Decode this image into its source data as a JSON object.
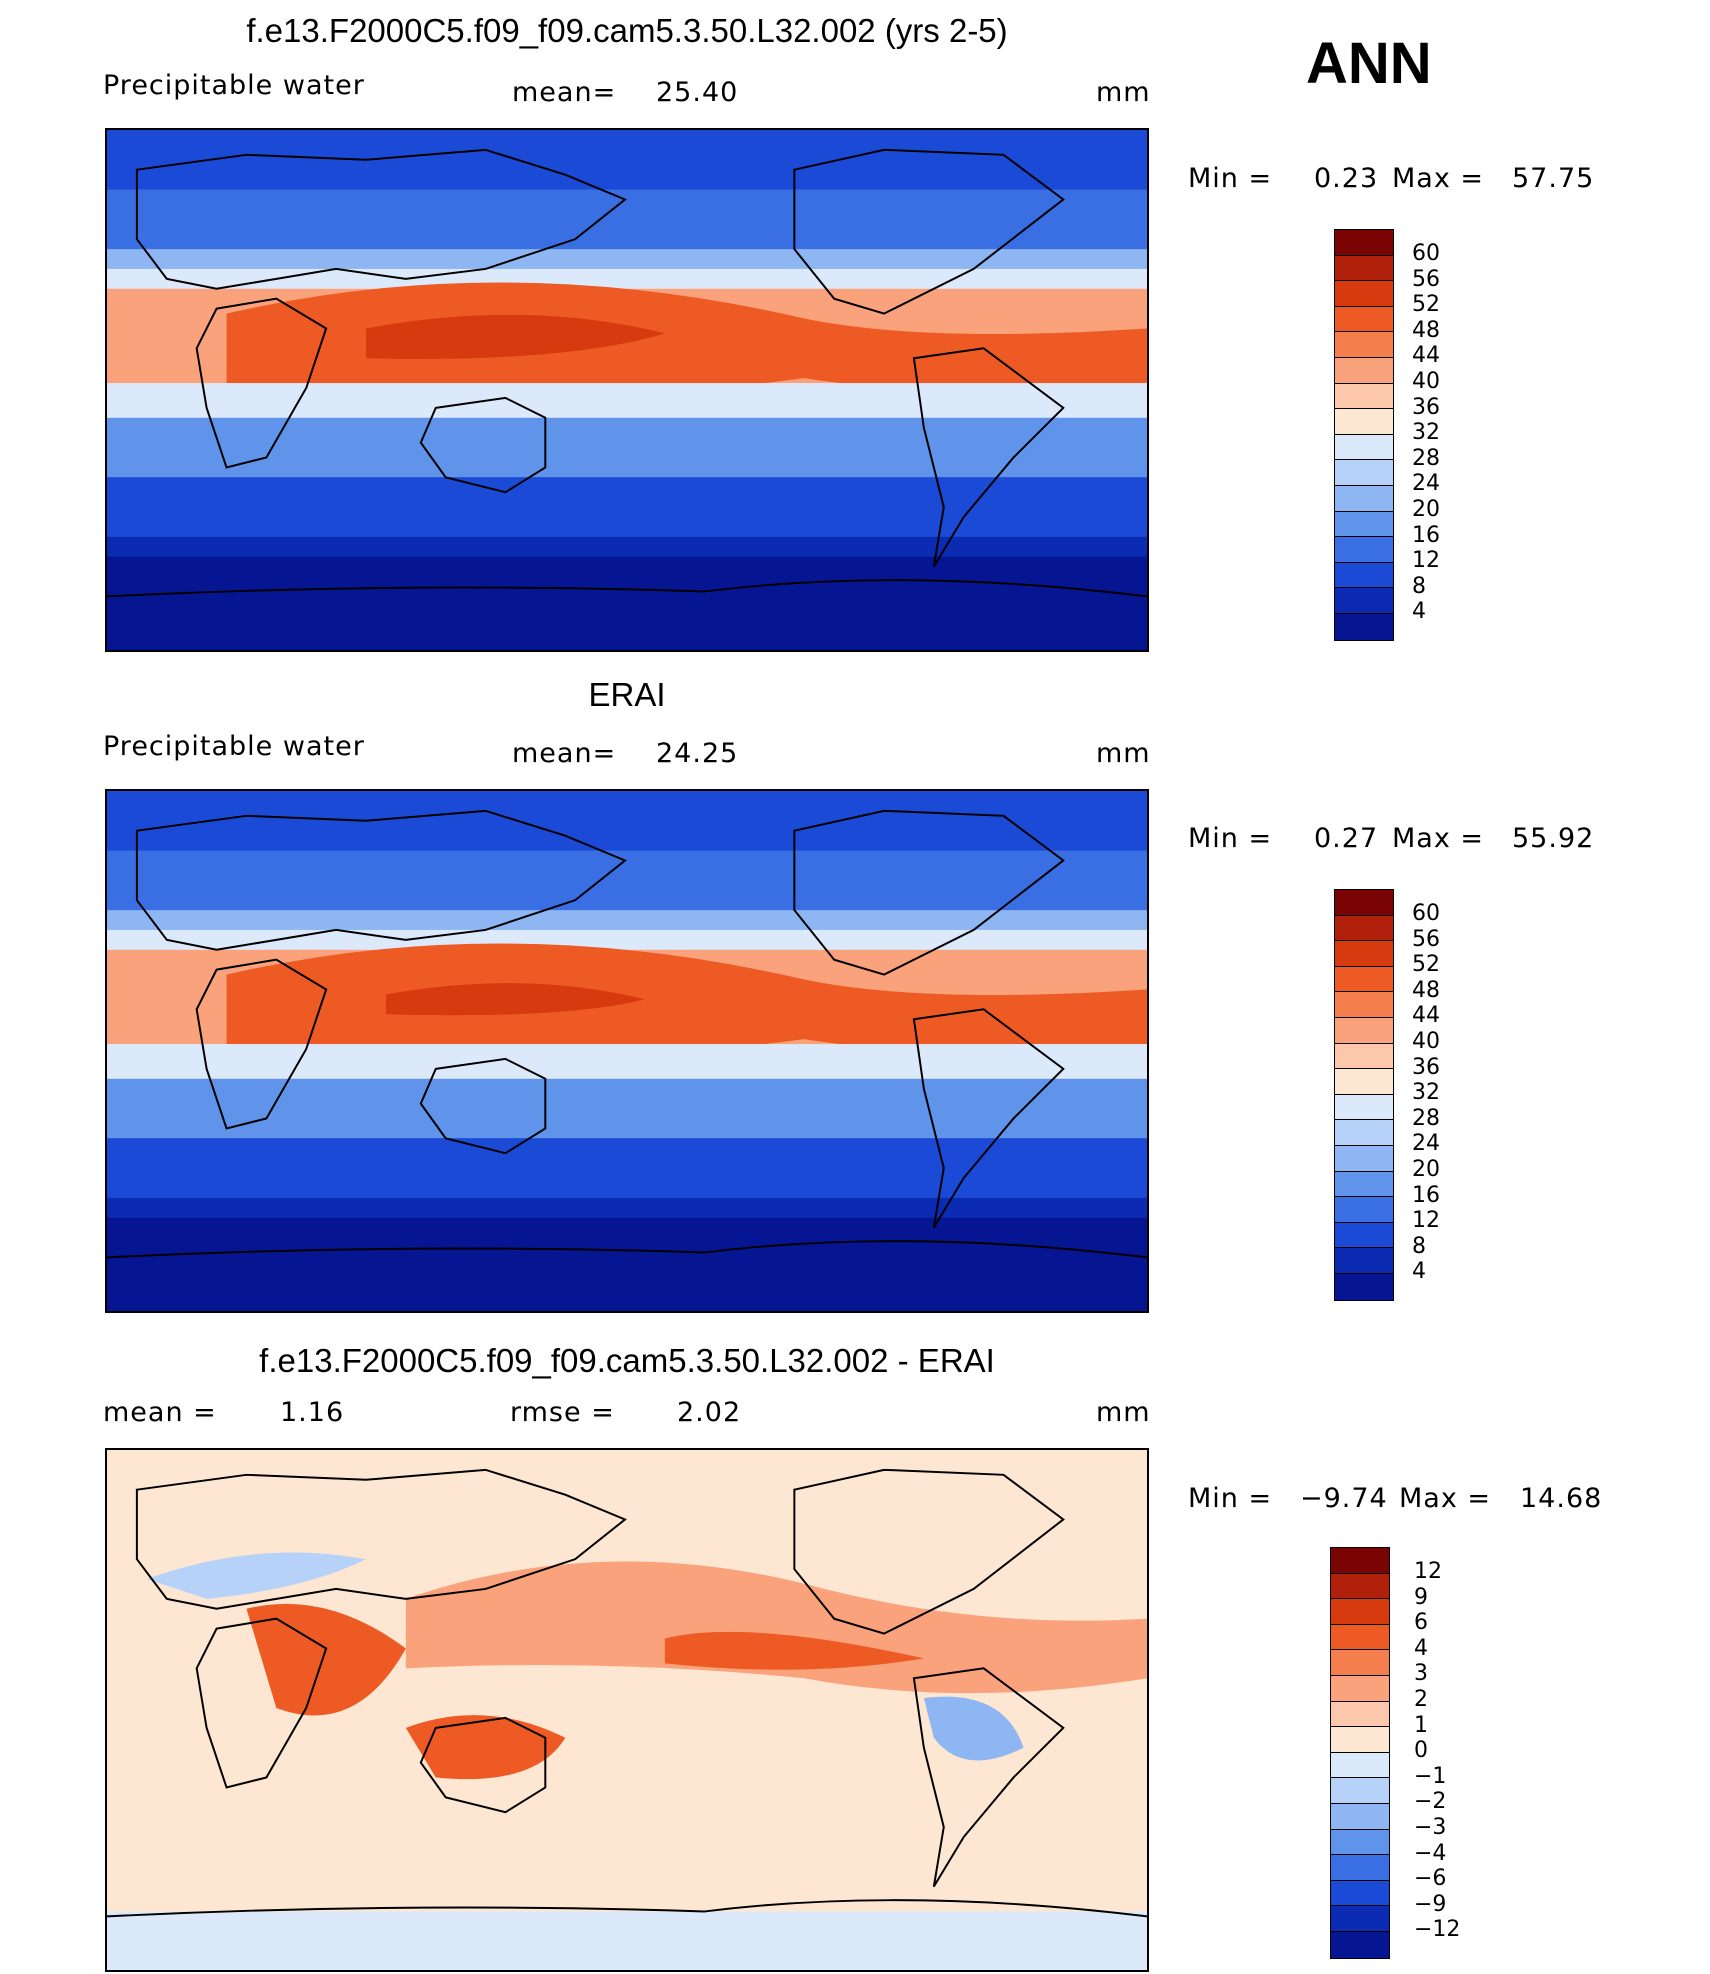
{
  "header": {
    "season": "ANN"
  },
  "panels": [
    {
      "id": "model",
      "title": "f.e13.F2000C5.f09_f09.cam5.3.50.L32.002 (yrs 2-5)",
      "variable": "Precipitable water",
      "stat_label": "mean=",
      "stat_value": "25.40",
      "units": "mm",
      "min_label": "Min =",
      "min_value": "0.23",
      "max_label": "Max =",
      "max_value": "57.75",
      "colorbar": {
        "labels": [
          "60",
          "56",
          "52",
          "48",
          "44",
          "40",
          "36",
          "32",
          "28",
          "24",
          "20",
          "16",
          "12",
          "8",
          "4"
        ],
        "colors": [
          "#7a0403",
          "#b0200b",
          "#d83a10",
          "#ee5a24",
          "#f57e4d",
          "#f9a27c",
          "#fcc7aa",
          "#fde6d2",
          "#dce9fb",
          "#b6d2f8",
          "#8db6f2",
          "#5f94ea",
          "#3a6fe3",
          "#1b4ad6",
          "#0b2bb3",
          "#061591"
        ]
      }
    },
    {
      "id": "obs",
      "title": "ERAI",
      "variable": "Precipitable water",
      "stat_label": "mean=",
      "stat_value": "24.25",
      "units": "mm",
      "min_label": "Min =",
      "min_value": "0.27",
      "max_label": "Max =",
      "max_value": "55.92",
      "colorbar": {
        "labels": [
          "60",
          "56",
          "52",
          "48",
          "44",
          "40",
          "36",
          "32",
          "28",
          "24",
          "20",
          "16",
          "12",
          "8",
          "4"
        ],
        "colors": [
          "#7a0403",
          "#b0200b",
          "#d83a10",
          "#ee5a24",
          "#f57e4d",
          "#f9a27c",
          "#fcc7aa",
          "#fde6d2",
          "#dce9fb",
          "#b6d2f8",
          "#8db6f2",
          "#5f94ea",
          "#3a6fe3",
          "#1b4ad6",
          "#0b2bb3",
          "#061591"
        ]
      }
    },
    {
      "id": "diff",
      "title": "f.e13.F2000C5.f09_f09.cam5.3.50.L32.002 - ERAI",
      "variable": "mean =",
      "variable_value": "1.16",
      "stat_label": "rmse =",
      "stat_value": "2.02",
      "units": "mm",
      "min_label": "Min =",
      "min_value": "−9.74",
      "max_label": "Max =",
      "max_value": "14.68",
      "colorbar": {
        "labels": [
          "12",
          "9",
          "6",
          "4",
          "3",
          "2",
          "1",
          "0",
          "−1",
          "−2",
          "−3",
          "−4",
          "−6",
          "−9",
          "−12"
        ],
        "colors": [
          "#7a0403",
          "#b0200b",
          "#d83a10",
          "#ee5a24",
          "#f57e4d",
          "#f9a27c",
          "#fcc7aa",
          "#fde6d2",
          "#dce9fb",
          "#b6d2f8",
          "#8db6f2",
          "#5f94ea",
          "#3a6fe3",
          "#1b4ad6",
          "#0b2bb3",
          "#061591"
        ]
      }
    }
  ]
}
